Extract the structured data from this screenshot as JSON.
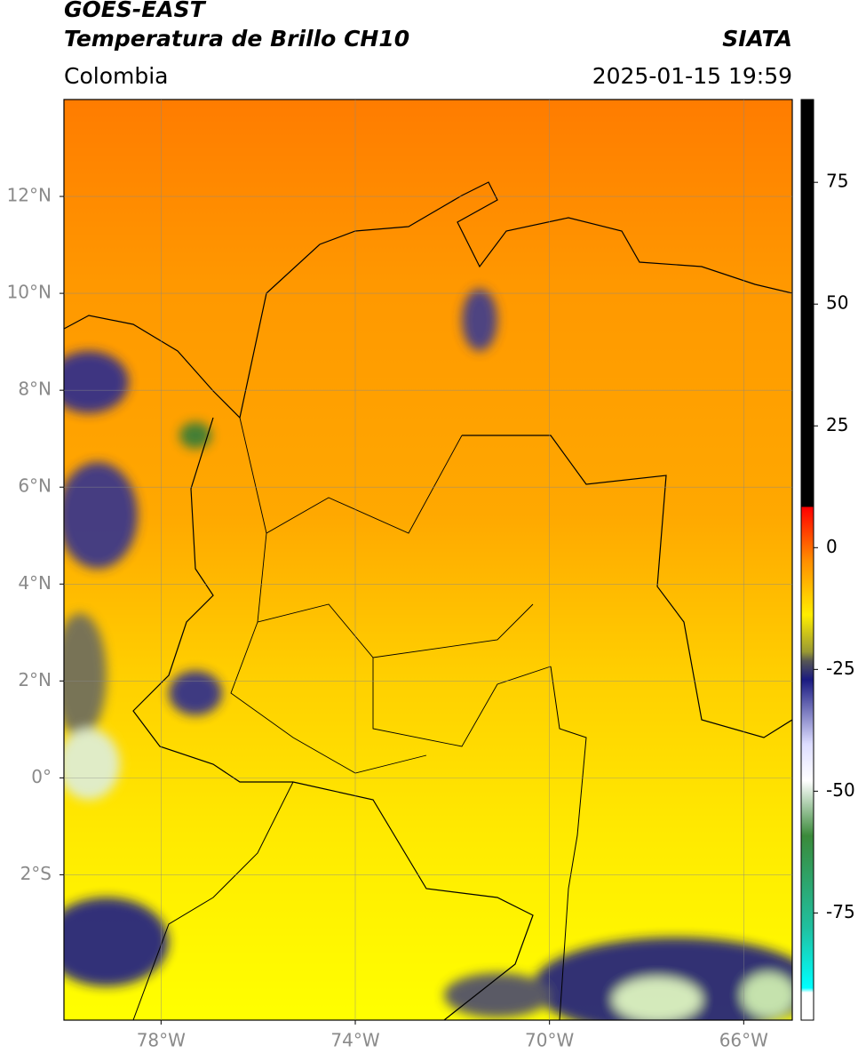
{
  "header": {
    "title": "GOES-EAST",
    "subtitle": "Temperatura de Brillo CH10",
    "region": "Colombia",
    "source": "SIATA",
    "datetime": "2025-01-15 19:59"
  },
  "map": {
    "lonlim": [
      -80,
      -65
    ],
    "latlim": [
      -5,
      14
    ],
    "lat_ticks": [
      {
        "value": 12,
        "label": "12°N"
      },
      {
        "value": 10,
        "label": "10°N"
      },
      {
        "value": 8,
        "label": "8°N"
      },
      {
        "value": 6,
        "label": "6°N"
      },
      {
        "value": 4,
        "label": "4°N"
      },
      {
        "value": 2,
        "label": "2°N"
      },
      {
        "value": 0,
        "label": "0°"
      },
      {
        "value": -2,
        "label": "2°S"
      }
    ],
    "lon_ticks": [
      {
        "value": -78,
        "label": "78°W"
      },
      {
        "value": -74,
        "label": "74°W"
      },
      {
        "value": -70,
        "label": "70°W"
      },
      {
        "value": -66,
        "label": "66°W"
      }
    ],
    "grid": true
  },
  "colorbar": {
    "lim": [
      -97,
      92
    ],
    "ticks": [
      75,
      50,
      25,
      0,
      -25,
      -50,
      -75
    ]
  }
}
